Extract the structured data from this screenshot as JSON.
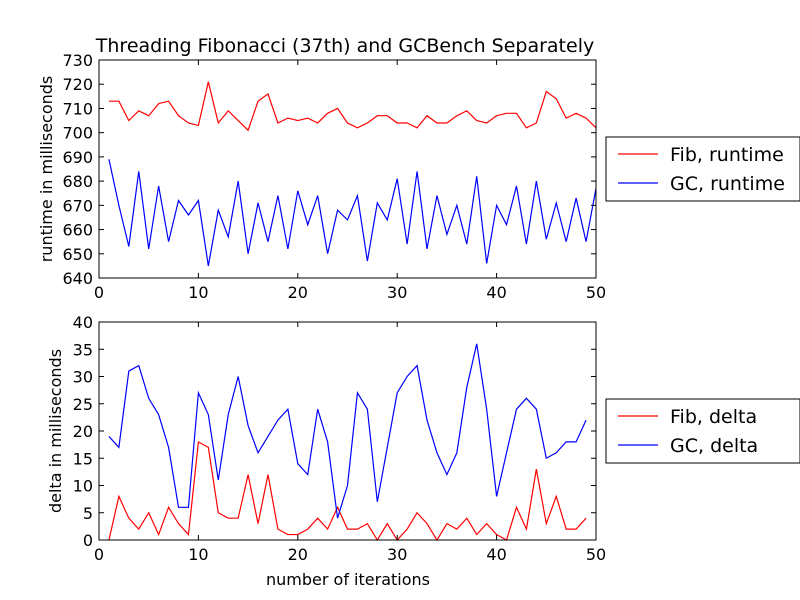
{
  "chart_data": [
    {
      "type": "line",
      "title": "Threading Fibonacci (37th) and GCBench Separately",
      "xlabel": "",
      "ylabel": "runtime in milliseconds",
      "xlim": [
        0,
        50
      ],
      "ylim": [
        640,
        730
      ],
      "xticks": [
        0,
        10,
        20,
        30,
        40,
        50
      ],
      "yticks": [
        640,
        650,
        660,
        670,
        680,
        690,
        700,
        710,
        720,
        730
      ],
      "grid": false,
      "legend_position": "right-outside",
      "x": [
        1,
        2,
        3,
        4,
        5,
        6,
        7,
        8,
        9,
        10,
        11,
        12,
        13,
        14,
        15,
        16,
        17,
        18,
        19,
        20,
        21,
        22,
        23,
        24,
        25,
        26,
        27,
        28,
        29,
        30,
        31,
        32,
        33,
        34,
        35,
        36,
        37,
        38,
        39,
        40,
        41,
        42,
        43,
        44,
        45,
        46,
        47,
        48,
        49,
        50
      ],
      "series": [
        {
          "name": "Fib, runtime",
          "color": "#ff0000",
          "values": [
            713,
            713,
            705,
            709,
            707,
            712,
            713,
            707,
            704,
            703,
            721,
            704,
            709,
            705,
            701,
            713,
            716,
            704,
            706,
            705,
            706,
            704,
            708,
            710,
            704,
            702,
            704,
            707,
            707,
            704,
            704,
            702,
            707,
            704,
            704,
            707,
            709,
            705,
            704,
            707,
            708,
            708,
            702,
            704,
            717,
            714,
            706,
            708,
            706,
            702
          ]
        },
        {
          "name": "GC, runtime",
          "color": "#0000ff",
          "values": [
            689,
            670,
            653,
            684,
            652,
            678,
            655,
            672,
            666,
            672,
            645,
            668,
            657,
            680,
            650,
            671,
            655,
            674,
            652,
            676,
            662,
            674,
            650,
            668,
            664,
            674,
            647,
            671,
            664,
            681,
            654,
            684,
            652,
            674,
            658,
            670,
            654,
            682,
            646,
            670,
            662,
            678,
            654,
            680,
            656,
            671,
            655,
            673,
            655,
            677
          ]
        }
      ]
    },
    {
      "type": "line",
      "title": "",
      "xlabel": "number of iterations",
      "ylabel": "delta in milliseconds",
      "xlim": [
        0,
        50
      ],
      "ylim": [
        0,
        40
      ],
      "xticks": [
        0,
        10,
        20,
        30,
        40,
        50
      ],
      "yticks": [
        0,
        5,
        10,
        15,
        20,
        25,
        30,
        35,
        40
      ],
      "grid": false,
      "legend_position": "right-outside",
      "x": [
        1,
        2,
        3,
        4,
        5,
        6,
        7,
        8,
        9,
        10,
        11,
        12,
        13,
        14,
        15,
        16,
        17,
        18,
        19,
        20,
        21,
        22,
        23,
        24,
        25,
        26,
        27,
        28,
        29,
        30,
        31,
        32,
        33,
        34,
        35,
        36,
        37,
        38,
        39,
        40,
        41,
        42,
        43,
        44,
        45,
        46,
        47,
        48,
        49
      ],
      "series": [
        {
          "name": "Fib, delta",
          "color": "#ff0000",
          "values": [
            0,
            8,
            4,
            2,
            5,
            1,
            6,
            3,
            1,
            18,
            17,
            5,
            4,
            4,
            12,
            3,
            12,
            2,
            1,
            1,
            2,
            4,
            2,
            6,
            2,
            2,
            3,
            0,
            3,
            0,
            2,
            5,
            3,
            0,
            3,
            2,
            4,
            1,
            3,
            1,
            0,
            6,
            2,
            13,
            3,
            8,
            2,
            2,
            4
          ]
        },
        {
          "name": "GC, delta",
          "color": "#0000ff",
          "values": [
            19,
            17,
            31,
            32,
            26,
            23,
            17,
            6,
            6,
            27,
            23,
            11,
            23,
            30,
            21,
            16,
            19,
            22,
            24,
            14,
            12,
            24,
            18,
            4,
            10,
            27,
            24,
            7,
            17,
            27,
            30,
            32,
            22,
            16,
            12,
            16,
            28,
            36,
            24,
            8,
            16,
            24,
            26,
            24,
            15,
            16,
            18,
            18,
            22
          ]
        }
      ]
    }
  ]
}
